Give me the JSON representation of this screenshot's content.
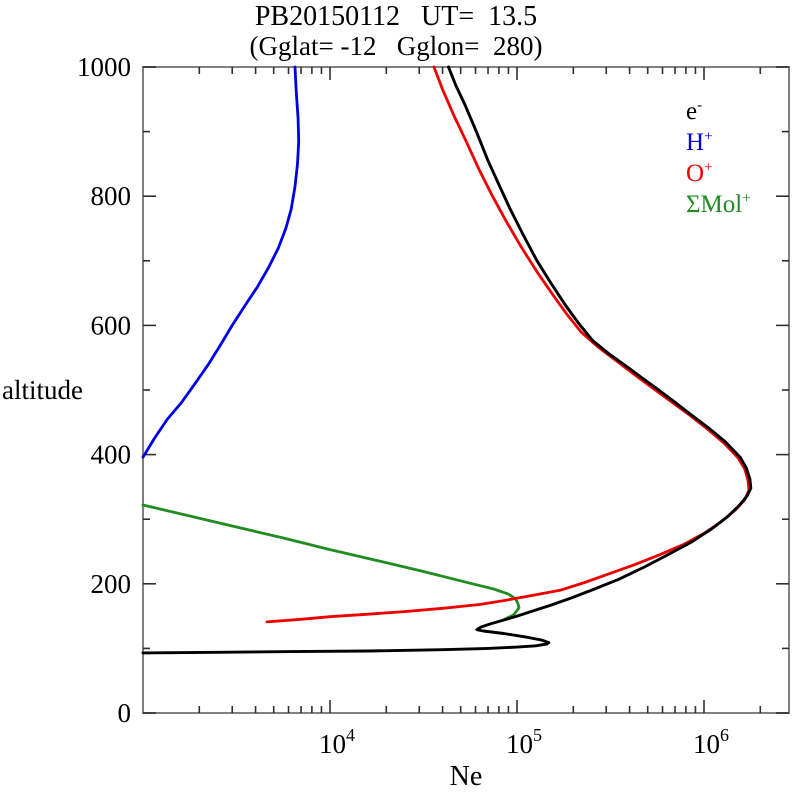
{
  "title": "PB20150112   UT=  13.5",
  "subtitle": "(Gglat= -12   Gglon=  280)",
  "legend_items": [
    {
      "base": "e",
      "sup": "-",
      "color": "#000000",
      "series": "e"
    },
    {
      "base": "H",
      "sup": "+",
      "color": "#0000e8",
      "series": "h-plus"
    },
    {
      "base": "O",
      "sup": "+",
      "color": "#ee0000",
      "series": "o-plus"
    },
    {
      "base": "ΣMol",
      "sup": "+",
      "color": "#228b22",
      "series": "mol-plus"
    }
  ],
  "chart_data": {
    "type": "line",
    "title": "PB20150112   UT=  13.5",
    "subtitle": "(Gglat= -12   Gglon=  280)",
    "xlabel": "Ne",
    "ylabel": "altitude",
    "xscale": "log",
    "xlim": [
      1000,
      2850000
    ],
    "ylim": [
      0,
      1000
    ],
    "grid": false,
    "legend_position": "upper-right-inside",
    "x_major_tick_exponents": [
      4,
      5,
      6
    ],
    "x_minor_tick_mantissas": [
      2,
      3,
      4,
      5,
      6,
      7,
      8,
      9
    ],
    "y_major_ticks": [
      0,
      200,
      400,
      600,
      800,
      1000
    ],
    "y_minor_step": 100,
    "axis_box_color": "#808080",
    "tick_color": "#303030",
    "series": [
      {
        "name": "e-",
        "id": "e",
        "color": "#000000",
        "width": 2.9,
        "points": [
          [
            1000,
            93
          ],
          [
            2500,
            94
          ],
          [
            6300,
            95
          ],
          [
            16000,
            96
          ],
          [
            40000,
            98
          ],
          [
            70000,
            100
          ],
          [
            100000,
            102
          ],
          [
            126000,
            104
          ],
          [
            145000,
            107
          ],
          [
            148000,
            109
          ],
          [
            135000,
            113
          ],
          [
            110000,
            118
          ],
          [
            85000,
            123
          ],
          [
            66000,
            127
          ],
          [
            61000,
            129
          ],
          [
            64000,
            133
          ],
          [
            72000,
            138
          ],
          [
            85000,
            144
          ],
          [
            100000,
            150
          ],
          [
            122000,
            158
          ],
          [
            152000,
            167
          ],
          [
            195000,
            178
          ],
          [
            255000,
            191
          ],
          [
            350000,
            207
          ],
          [
            480000,
            226
          ],
          [
            650000,
            246
          ],
          [
            860000,
            265
          ],
          [
            1100000,
            285
          ],
          [
            1350000,
            305
          ],
          [
            1550000,
            322
          ],
          [
            1700000,
            336
          ],
          [
            1780000,
            348
          ],
          [
            1760000,
            362
          ],
          [
            1680000,
            380
          ],
          [
            1560000,
            396
          ],
          [
            1300000,
            420
          ],
          [
            1050000,
            442
          ],
          [
            850000,
            462
          ],
          [
            700000,
            481
          ],
          [
            560000,
            502
          ],
          [
            460000,
            520
          ],
          [
            380000,
            538
          ],
          [
            310000,
            556
          ],
          [
            255000,
            576
          ],
          [
            215000,
            602
          ],
          [
            180000,
            633
          ],
          [
            150000,
            668
          ],
          [
            128000,
            700
          ],
          [
            108000,
            740
          ],
          [
            92000,
            780
          ],
          [
            80000,
            818
          ],
          [
            70000,
            855
          ],
          [
            61000,
            898
          ],
          [
            53000,
            940
          ],
          [
            47000,
            972
          ],
          [
            43000,
            1000
          ]
        ]
      },
      {
        "name": "H+",
        "id": "h-plus",
        "color": "#0000e8",
        "width": 2.8,
        "points": [
          [
            1000,
            396
          ],
          [
            1150,
            425
          ],
          [
            1350,
            455
          ],
          [
            1600,
            480
          ],
          [
            1900,
            510
          ],
          [
            2240,
            540
          ],
          [
            2600,
            570
          ],
          [
            3000,
            600
          ],
          [
            3500,
            630
          ],
          [
            4100,
            660
          ],
          [
            4700,
            690
          ],
          [
            5300,
            720
          ],
          [
            5800,
            750
          ],
          [
            6200,
            780
          ],
          [
            6500,
            815
          ],
          [
            6700,
            850
          ],
          [
            6800,
            885
          ],
          [
            6750,
            920
          ],
          [
            6600,
            960
          ],
          [
            6500,
            1000
          ]
        ]
      },
      {
        "name": "O+",
        "id": "o-plus",
        "color": "#ee0000",
        "width": 2.8,
        "points": [
          [
            4600,
            141
          ],
          [
            7000,
            145
          ],
          [
            10000,
            149
          ],
          [
            16000,
            153
          ],
          [
            25000,
            157
          ],
          [
            40000,
            162
          ],
          [
            63000,
            168
          ],
          [
            85000,
            174
          ],
          [
            115000,
            181
          ],
          [
            170000,
            190
          ],
          [
            230000,
            202
          ],
          [
            300000,
            214
          ],
          [
            420000,
            229
          ],
          [
            580000,
            245
          ],
          [
            780000,
            261
          ],
          [
            1000000,
            278
          ],
          [
            1250000,
            297
          ],
          [
            1480000,
            315
          ],
          [
            1650000,
            330
          ],
          [
            1740000,
            345
          ],
          [
            1720000,
            360
          ],
          [
            1650000,
            378
          ],
          [
            1520000,
            395
          ],
          [
            1280000,
            418
          ],
          [
            1020000,
            442
          ],
          [
            820000,
            463
          ],
          [
            660000,
            483
          ],
          [
            520000,
            505
          ],
          [
            420000,
            525
          ],
          [
            340000,
            545
          ],
          [
            270000,
            567
          ],
          [
            220000,
            590
          ],
          [
            185000,
            617
          ],
          [
            155000,
            648
          ],
          [
            128000,
            683
          ],
          [
            105000,
            722
          ],
          [
            88000,
            760
          ],
          [
            74000,
            800
          ],
          [
            63000,
            840
          ],
          [
            54000,
            882
          ],
          [
            46000,
            925
          ],
          [
            40000,
            965
          ],
          [
            36000,
            1000
          ]
        ]
      },
      {
        "name": "SMol+",
        "id": "mol-plus",
        "color": "#228b22",
        "width": 2.8,
        "points": [
          [
            1000,
            322
          ],
          [
            1780,
            305
          ],
          [
            3160,
            288
          ],
          [
            5600,
            271
          ],
          [
            10000,
            253
          ],
          [
            17800,
            236
          ],
          [
            31600,
            219
          ],
          [
            56000,
            201
          ],
          [
            75000,
            192
          ],
          [
            90000,
            184
          ],
          [
            98000,
            177
          ],
          [
            101000,
            170
          ],
          [
            102500,
            163
          ],
          [
            96000,
            152
          ],
          [
            86000,
            145
          ]
        ]
      }
    ]
  }
}
